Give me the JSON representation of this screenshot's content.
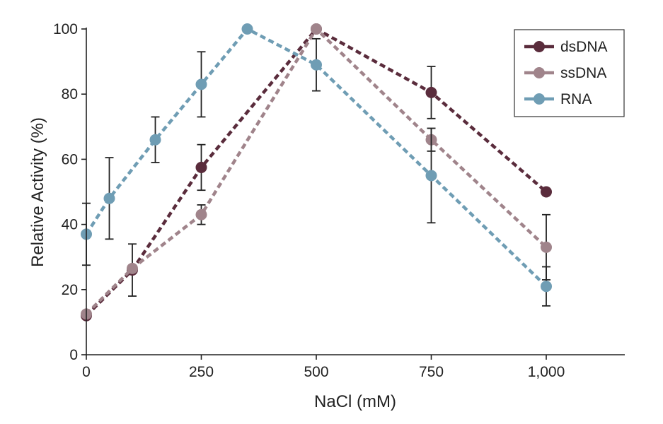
{
  "chart_data": {
    "type": "line",
    "title": "",
    "xlabel": "NaCl (mM)",
    "ylabel": "Relative Activity (%)",
    "xlim": [
      0,
      1170
    ],
    "ylim": [
      0,
      100
    ],
    "x_ticks": [
      0,
      250,
      500,
      750,
      1000
    ],
    "x_tick_labels": [
      "0",
      "250",
      "500",
      "750",
      "1,000"
    ],
    "y_ticks": [
      0,
      20,
      40,
      60,
      80,
      100
    ],
    "y_tick_labels": [
      "0",
      "20",
      "40",
      "60",
      "80",
      "100"
    ],
    "grid": false,
    "legend_position": "top-right",
    "line_style": "dashed",
    "series": [
      {
        "name": "dsDNA",
        "color": "#5a2c3c",
        "points": [
          {
            "x": 0,
            "y": 12,
            "err": null
          },
          {
            "x": 100,
            "y": 26,
            "err": 8
          },
          {
            "x": 250,
            "y": 57.5,
            "err": 7
          },
          {
            "x": 500,
            "y": 100,
            "err": null
          },
          {
            "x": 750,
            "y": 80.5,
            "err": 8
          },
          {
            "x": 1000,
            "y": 50,
            "err": null
          }
        ]
      },
      {
        "name": "ssDNA",
        "color": "#a0848b",
        "points": [
          {
            "x": 0,
            "y": 12.5,
            "err": null
          },
          {
            "x": 100,
            "y": 26.5,
            "err": null
          },
          {
            "x": 250,
            "y": 43,
            "err": 3
          },
          {
            "x": 500,
            "y": 100,
            "err": null
          },
          {
            "x": 750,
            "y": 66,
            "err": 3.5
          },
          {
            "x": 1000,
            "y": 33,
            "err": 10
          }
        ]
      },
      {
        "name": "RNA",
        "color": "#6f9db4",
        "points": [
          {
            "x": 0,
            "y": 37,
            "err": 9.5
          },
          {
            "x": 50,
            "y": 48,
            "err": 12.5
          },
          {
            "x": 150,
            "y": 66,
            "err": 7
          },
          {
            "x": 250,
            "y": 83,
            "err": 10
          },
          {
            "x": 350,
            "y": 100,
            "err": null
          },
          {
            "x": 500,
            "y": 89,
            "err": 8
          },
          {
            "x": 750,
            "y": 55,
            "err": 14.5
          },
          {
            "x": 1000,
            "y": 21,
            "err": 6
          }
        ]
      }
    ]
  }
}
